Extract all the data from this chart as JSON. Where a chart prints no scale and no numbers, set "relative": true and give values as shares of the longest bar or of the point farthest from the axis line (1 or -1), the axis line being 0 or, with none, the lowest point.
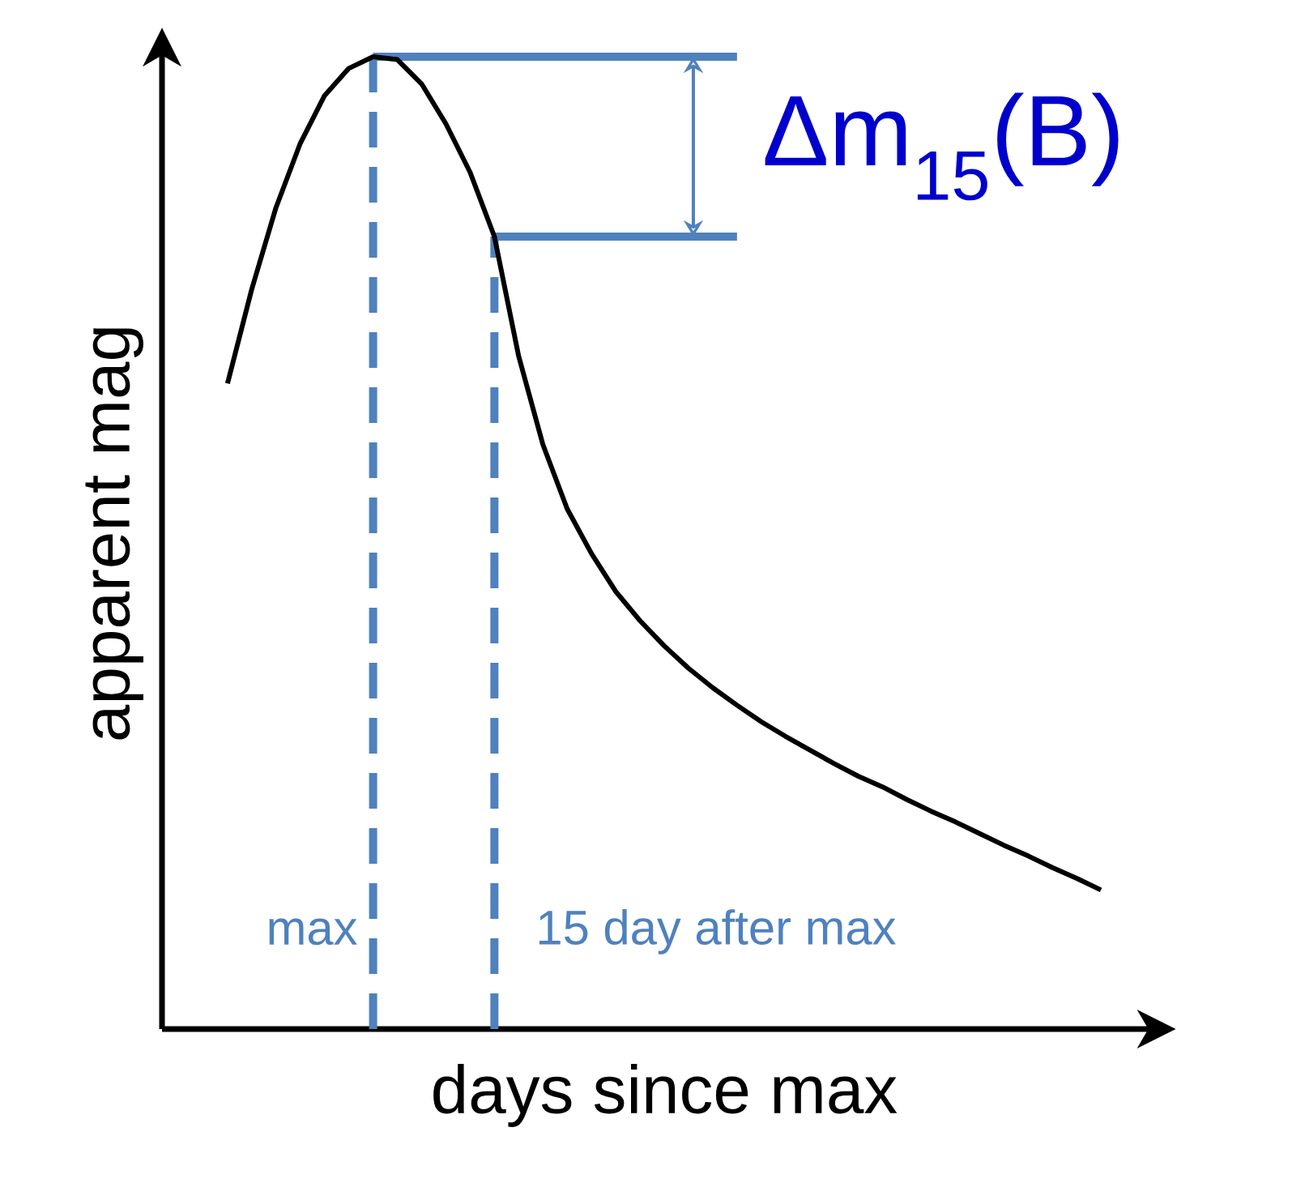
{
  "chart_data": {
    "type": "line",
    "relative": true,
    "xlabel": "days since max",
    "ylabel": "apparent mag",
    "categories": [
      null,
      null,
      null,
      null,
      null,
      null,
      null,
      null,
      null,
      null,
      null,
      null,
      null,
      null,
      null,
      null,
      null,
      null,
      null,
      null,
      null,
      null,
      null,
      null,
      null,
      null,
      null,
      null,
      null,
      null,
      null,
      null,
      null,
      null,
      null,
      null,
      null
    ],
    "series": [
      {
        "color": "#000000",
        "values": [
          0.664,
          0.761,
          0.845,
          0.911,
          0.96,
          0.988,
          1.0,
          0.997,
          0.972,
          0.931,
          0.881,
          0.815,
          0.692,
          0.601,
          0.535,
          0.489,
          0.45,
          0.42,
          0.394,
          0.371,
          0.351,
          0.333,
          0.316,
          0.301,
          0.287,
          0.273,
          0.26,
          0.249,
          0.236,
          0.224,
          0.213,
          0.201,
          0.189,
          0.178,
          0.166,
          0.155,
          0.143
        ]
      }
    ],
    "marker": "none",
    "line_style": "solid",
    "ref_lines": [
      {
        "axis": "y",
        "value": 1.0,
        "label": "max",
        "color": "#4f81bd"
      },
      {
        "axis": "y",
        "value": 0.815,
        "label": "15 day after max",
        "color": "#4f81bd"
      }
    ],
    "annotations": [
      "Δm$_{15}$(B)"
    ]
  }
}
